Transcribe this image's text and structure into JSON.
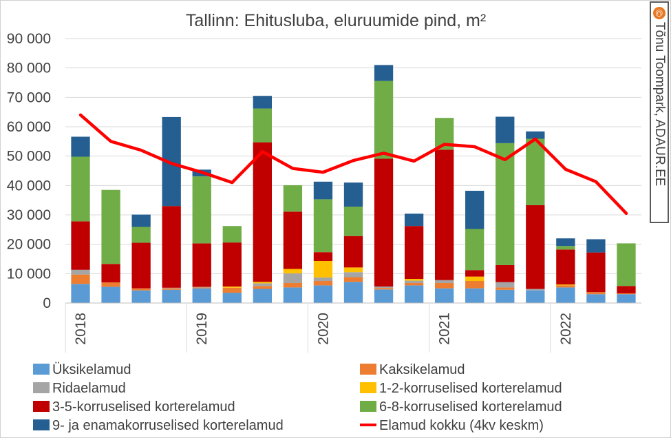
{
  "chart_data": {
    "type": "bar",
    "stacked": true,
    "title": "Tallinn: Ehitusluba, eluruumide pind, m²",
    "xlabel": "",
    "ylabel": "",
    "ylim": [
      0,
      90000
    ],
    "yticks": [
      0,
      10000,
      20000,
      30000,
      40000,
      50000,
      60000,
      70000,
      80000,
      90000
    ],
    "ytick_labels": [
      "0",
      "10 000",
      "20 000",
      "30 000",
      "40 000",
      "50 000",
      "60 000",
      "70 000",
      "80 000",
      "90 000"
    ],
    "categories": [
      "2018 Q1",
      "2018 Q2",
      "2018 Q3",
      "2018 Q4",
      "2019 Q1",
      "2019 Q2",
      "2019 Q3",
      "2019 Q4",
      "2020 Q1",
      "2020 Q2",
      "2020 Q3",
      "2020 Q4",
      "2021 Q1",
      "2021 Q2",
      "2021 Q3",
      "2021 Q4",
      "2022 Q1",
      "2022 Q2",
      "2022 Q3"
    ],
    "year_labels": [
      {
        "label": "2018",
        "index": 0
      },
      {
        "label": "2019",
        "index": 4
      },
      {
        "label": "2020",
        "index": 8
      },
      {
        "label": "2021",
        "index": 12
      },
      {
        "label": "2022",
        "index": 16
      }
    ],
    "grid": true,
    "legend_position": "bottom",
    "series": [
      {
        "name": "Üksikelamud",
        "color": "#5b9bd5",
        "values": [
          6500,
          5500,
          4300,
          4500,
          5000,
          3500,
          4800,
          5300,
          6000,
          7200,
          4600,
          6000,
          5000,
          5000,
          4500,
          4300,
          5300,
          3000,
          3000
        ]
      },
      {
        "name": "Kaksikelamud",
        "color": "#ed7d31",
        "values": [
          3200,
          1500,
          700,
          500,
          300,
          1700,
          1000,
          1500,
          1500,
          1600,
          500,
          800,
          1800,
          2500,
          800,
          0,
          700,
          700,
          300
        ]
      },
      {
        "name": "Ridaelamud",
        "color": "#a5a5a5",
        "values": [
          1600,
          0,
          0,
          200,
          200,
          0,
          900,
          3300,
          1200,
          1700,
          500,
          800,
          1000,
          0,
          1800,
          500,
          0,
          0,
          0
        ]
      },
      {
        "name": "1-2-korruselised korterelamud",
        "color": "#ffc000",
        "values": [
          0,
          0,
          0,
          0,
          0,
          400,
          500,
          1500,
          5600,
          1600,
          0,
          600,
          0,
          1500,
          0,
          0,
          300,
          0,
          0
        ]
      },
      {
        "name": "3-5-korruselised korterelamud",
        "color": "#c00000",
        "values": [
          16500,
          6300,
          15500,
          27800,
          14800,
          15000,
          47500,
          19500,
          3000,
          10700,
          43500,
          18000,
          44400,
          2200,
          5800,
          28500,
          11900,
          13500,
          2500
        ]
      },
      {
        "name": "6-8-korruselised korterelamud",
        "color": "#70ad47",
        "values": [
          22000,
          25200,
          5400,
          0,
          22800,
          5600,
          11500,
          9000,
          18000,
          10000,
          26500,
          0,
          10800,
          14000,
          41500,
          22600,
          1200,
          0,
          14500
        ]
      },
      {
        "name": "9- ja enamakorruselised korterelamud",
        "color": "#255e91",
        "values": [
          6800,
          0,
          4200,
          30300,
          2300,
          0,
          4300,
          0,
          6000,
          8200,
          5400,
          4200,
          0,
          13000,
          9000,
          2500,
          2600,
          4500,
          0
        ]
      },
      {
        "name": "Elamud kokku (4kv keskm)",
        "color": "#ff0000",
        "kind": "line",
        "values": [
          64000,
          55000,
          52000,
          47500,
          44500,
          41000,
          51500,
          45800,
          44500,
          48500,
          51000,
          48300,
          54000,
          53200,
          48800,
          55800,
          45500,
          41300,
          30500
        ]
      }
    ]
  },
  "credit": {
    "mark": "©",
    "text": "Tõnu Toompark, ADAUR.EE"
  }
}
